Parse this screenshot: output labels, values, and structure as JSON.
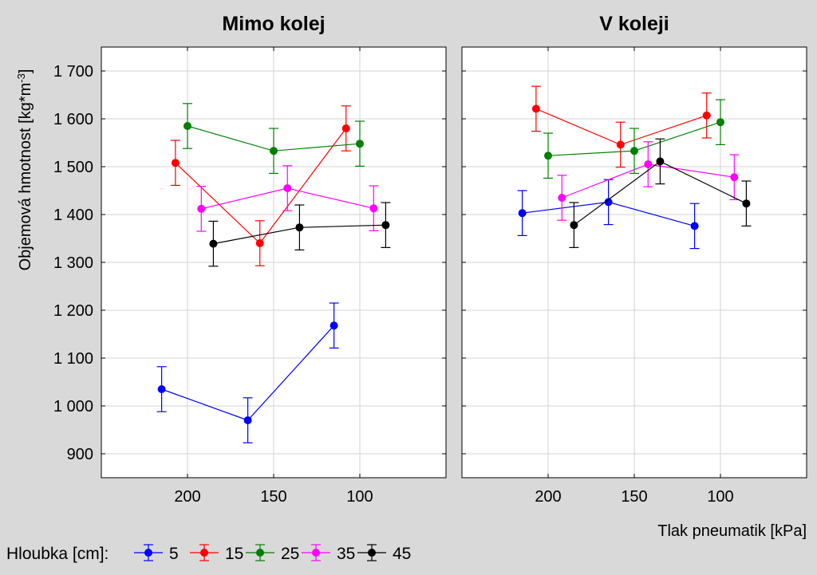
{
  "chart_data": {
    "type": "line",
    "with_error_bars": true,
    "ylabel": "Objemová hmotnost [kg*m",
    "ylabel_superscript": "-3",
    "ylabel_suffix": "]",
    "xlabel": "Tlak pneumatik [kPa]",
    "y_ticks": [
      900,
      1000,
      1100,
      1200,
      1300,
      1400,
      1500,
      1600,
      1700
    ],
    "y_tick_labels": [
      "900",
      "1 000",
      "1 100",
      "1 200",
      "1 300",
      "1 400",
      "1 500",
      "1 600",
      "1 700"
    ],
    "ylim": [
      850,
      1750
    ],
    "x_ticks": [
      200,
      150,
      100
    ],
    "x_tick_labels": [
      "200",
      "150",
      "100"
    ],
    "xlim": [
      250,
      50
    ],
    "x_reversed": true,
    "grid": true,
    "legend": {
      "title": "Hloubka [cm]:",
      "position": "bottom",
      "entries": [
        "5",
        "15",
        "25",
        "35",
        "45"
      ]
    },
    "panels": [
      {
        "title": "Mimo kolej",
        "series": [
          {
            "name": "5",
            "color": "#0000ff",
            "x": [
              215,
              165,
              115
            ],
            "y": [
              1035,
              970,
              1168
            ],
            "err": [
              47,
              47,
              47
            ]
          },
          {
            "name": "15",
            "color": "#ff0000",
            "x": [
              207,
              158,
              108
            ],
            "y": [
              1508,
              1340,
              1580
            ],
            "err": [
              47,
              47,
              47
            ]
          },
          {
            "name": "25",
            "color": "#008000",
            "x": [
              200,
              150,
              100
            ],
            "y": [
              1585,
              1533,
              1548
            ],
            "err": [
              47,
              47,
              47
            ]
          },
          {
            "name": "35",
            "color": "#ff00ff",
            "x": [
              192,
              142,
              92
            ],
            "y": [
              1412,
              1455,
              1413
            ],
            "err": [
              47,
              47,
              47
            ]
          },
          {
            "name": "45",
            "color": "#000000",
            "x": [
              185,
              135,
              85
            ],
            "y": [
              1339,
              1373,
              1378
            ],
            "err": [
              47,
              47,
              47
            ]
          }
        ]
      },
      {
        "title": "V koleji",
        "series": [
          {
            "name": "5",
            "color": "#0000ff",
            "x": [
              215,
              165,
              115
            ],
            "y": [
              1403,
              1426,
              1376
            ],
            "err": [
              47,
              47,
              47
            ]
          },
          {
            "name": "15",
            "color": "#ff0000",
            "x": [
              207,
              158,
              108
            ],
            "y": [
              1621,
              1546,
              1607
            ],
            "err": [
              47,
              47,
              47
            ]
          },
          {
            "name": "25",
            "color": "#008000",
            "x": [
              200,
              150,
              100
            ],
            "y": [
              1523,
              1533,
              1593
            ],
            "err": [
              47,
              47,
              47
            ]
          },
          {
            "name": "35",
            "color": "#ff00ff",
            "x": [
              192,
              142,
              92
            ],
            "y": [
              1435,
              1505,
              1478
            ],
            "err": [
              47,
              47,
              47
            ]
          },
          {
            "name": "45",
            "color": "#000000",
            "x": [
              185,
              135,
              85
            ],
            "y": [
              1378,
              1511,
              1423
            ],
            "err": [
              47,
              47,
              47
            ]
          }
        ]
      }
    ]
  }
}
